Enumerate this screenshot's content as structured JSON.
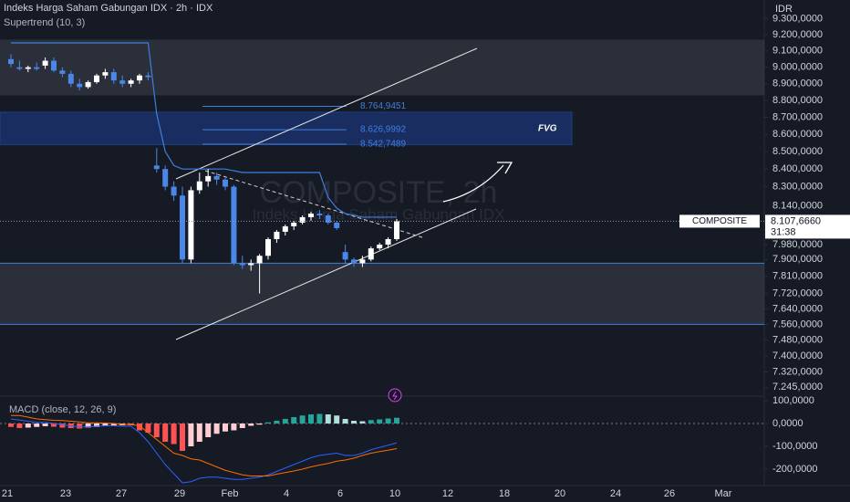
{
  "chart_data": {
    "type": "candlestick",
    "title": "Indeks Harga Saham Gabungan IDX · 2h · IDX",
    "indicator": "Supertrend (10, 3)",
    "watermark": "COMPOSITE, 2h",
    "watermark_subtitle": "Indeks Harga Saham Gabungan IDX",
    "currency": "IDR",
    "symbol": "COMPOSITE",
    "countdown": "31:38",
    "log": true,
    "ylim": [
      7210,
      9420
    ],
    "yticks": [
      {
        "value": 9300,
        "label": "9.300,0000"
      },
      {
        "value": 9200,
        "label": "9.200,0000"
      },
      {
        "value": 9100,
        "label": "9.100,0000"
      },
      {
        "value": 9000,
        "label": "9.000,0000"
      },
      {
        "value": 8900,
        "label": "8.900,0000"
      },
      {
        "value": 8800,
        "label": "8.800,0000"
      },
      {
        "value": 8700,
        "label": "8.700,0000"
      },
      {
        "value": 8600,
        "label": "8.600,0000"
      },
      {
        "value": 8500,
        "label": "8.500,0000"
      },
      {
        "value": 8400,
        "label": "8.400,0000"
      },
      {
        "value": 8300,
        "label": "8.300,0000"
      },
      {
        "value": 8140,
        "label": "8.140,0000"
      },
      {
        "value": 7980,
        "label": "7.980,0000"
      },
      {
        "value": 7900,
        "label": "7.900,0000"
      },
      {
        "value": 7810,
        "label": "7.810,0000"
      },
      {
        "value": 7720,
        "label": "7.720,0000"
      },
      {
        "value": 7640,
        "label": "7.640,0000"
      },
      {
        "value": 7560,
        "label": "7.560,0000"
      },
      {
        "value": 7480,
        "label": "7.480,0000"
      },
      {
        "value": 7400,
        "label": "7.400,0000"
      },
      {
        "value": 7320,
        "label": "7.320,0000"
      },
      {
        "value": 7245,
        "label": "7.245,0000"
      }
    ],
    "x_labels": [
      "21",
      "23",
      "27",
      "29",
      "Feb",
      "4",
      "6",
      "10",
      "12",
      "18",
      "20",
      "24",
      "26",
      "Mar"
    ],
    "up_color": "#ffffff",
    "down_color": "#4a87e8",
    "open": [
      9050,
      9000,
      8990,
      9000,
      9010,
      9040,
      8980,
      8960,
      8900,
      8880,
      8910,
      8950,
      8970,
      8920,
      8900,
      8920,
      8950,
      8420,
      8400,
      8300,
      8250,
      7900,
      8280,
      8330,
      8360,
      8340,
      8300,
      7880,
      7870,
      7880,
      7920,
      8010,
      8050,
      8080,
      8100,
      8130,
      8150,
      8140,
      8100,
      7940,
      7900,
      7880,
      7900,
      7960,
      7980,
      8010
    ],
    "high": [
      9080,
      9040,
      9010,
      9030,
      9060,
      9060,
      9000,
      8980,
      8930,
      8920,
      8960,
      8990,
      8990,
      8950,
      8930,
      8960,
      8970,
      8520,
      8420,
      8330,
      8300,
      8300,
      8380,
      8400,
      8380,
      8350,
      8310,
      7920,
      7900,
      7930,
      8020,
      8060,
      8090,
      8110,
      8140,
      8160,
      8170,
      8150,
      8110,
      7980,
      7910,
      7920,
      7970,
      7990,
      8020,
      8120
    ],
    "low": [
      9000,
      8980,
      8970,
      8980,
      8990,
      8970,
      8940,
      8880,
      8860,
      8870,
      8900,
      8930,
      8900,
      8880,
      8880,
      8900,
      8920,
      8380,
      8280,
      8220,
      7880,
      7880,
      8260,
      8300,
      8310,
      8280,
      7870,
      7850,
      7840,
      7720,
      7900,
      7990,
      8030,
      8060,
      8090,
      8110,
      8120,
      8090,
      8060,
      7880,
      7860,
      7860,
      7890,
      7950,
      7960,
      8000
    ],
    "close": [
      9020,
      8990,
      9000,
      8990,
      9040,
      8980,
      8960,
      8900,
      8880,
      8910,
      8950,
      8970,
      8920,
      8900,
      8920,
      8950,
      8940,
      8400,
      8300,
      8250,
      7900,
      8280,
      8330,
      8360,
      8340,
      8300,
      7880,
      7870,
      7880,
      7920,
      8010,
      8050,
      8080,
      8100,
      8130,
      8150,
      8140,
      8100,
      8070,
      7900,
      7880,
      7900,
      7960,
      7980,
      8010,
      8107.666
    ],
    "supertrend": {
      "color": "#3d7fe0",
      "values": [
        9150,
        9150,
        9150,
        9150,
        9150,
        9150,
        9150,
        9150,
        9150,
        9150,
        9150,
        9150,
        9150,
        9150,
        9150,
        9150,
        9150,
        8720,
        8500,
        8420,
        8400,
        8400,
        8400,
        8400,
        8400,
        8400,
        8390,
        8380,
        8380,
        8380,
        8380,
        8380,
        8380,
        8380,
        8380,
        8380,
        8380,
        8240,
        8180,
        8150,
        8140,
        8130,
        8130,
        8130,
        8130,
        8130
      ]
    },
    "last_price": {
      "value": 8107.666,
      "label": "8.107,6660"
    },
    "fvg": {
      "label": "FVG",
      "range": [
        8540,
        8730
      ],
      "levels": [
        {
          "value": 8764.9451,
          "label": "8.764,9451"
        },
        {
          "value": 8626.9992,
          "label": "8.626,9992"
        },
        {
          "value": 8542.7489,
          "label": "8.542,7489"
        }
      ]
    },
    "zones": [
      [
        8830,
        9170
      ],
      [
        7560,
        7880
      ]
    ],
    "macd": {
      "title": "MACD (close, 12, 26, 9)",
      "ylim": [
        -264,
        104
      ],
      "yticks": [
        {
          "value": 100,
          "label": "100,0000"
        },
        {
          "value": 0,
          "label": "0,0000"
        },
        {
          "value": -100,
          "label": "-100,0000"
        },
        {
          "value": -200,
          "label": "-200,0000"
        }
      ],
      "histogram": {
        "values": [
          -15,
          -20,
          -18,
          -15,
          -12,
          -14,
          -18,
          -20,
          -22,
          -18,
          -15,
          -12,
          -10,
          -8,
          -8,
          -30,
          -40,
          -60,
          -80,
          -90,
          -120,
          -100,
          -80,
          -60,
          -45,
          -35,
          -30,
          -20,
          -10,
          -5,
          5,
          12,
          20,
          28,
          35,
          40,
          42,
          40,
          35,
          20,
          12,
          10,
          15,
          18,
          22,
          25
        ]
      },
      "line": {
        "color": "#2962ff",
        "values": [
          20,
          15,
          10,
          5,
          5,
          0,
          -5,
          -10,
          -15,
          -15,
          -12,
          -10,
          -10,
          -12,
          -12,
          -40,
          -80,
          -130,
          -180,
          -220,
          -260,
          -255,
          -240,
          -235,
          -235,
          -240,
          -245,
          -245,
          -240,
          -235,
          -225,
          -210,
          -195,
          -180,
          -165,
          -150,
          -140,
          -135,
          -130,
          -140,
          -140,
          -130,
          -115,
          -105,
          -95,
          -85
        ]
      },
      "signal": {
        "color": "#ff6d00",
        "values": [
          35,
          35,
          28,
          20,
          17,
          14,
          13,
          10,
          7,
          3,
          3,
          2,
          0,
          -4,
          -4,
          -10,
          -40,
          -70,
          -100,
          -130,
          -140,
          -155,
          -160,
          -175,
          -190,
          -205,
          -215,
          -225,
          -230,
          -230,
          -230,
          -222,
          -215,
          -208,
          -200,
          -190,
          -182,
          -175,
          -165,
          -160,
          -152,
          -140,
          -130,
          -123,
          -117,
          -110
        ]
      }
    }
  }
}
